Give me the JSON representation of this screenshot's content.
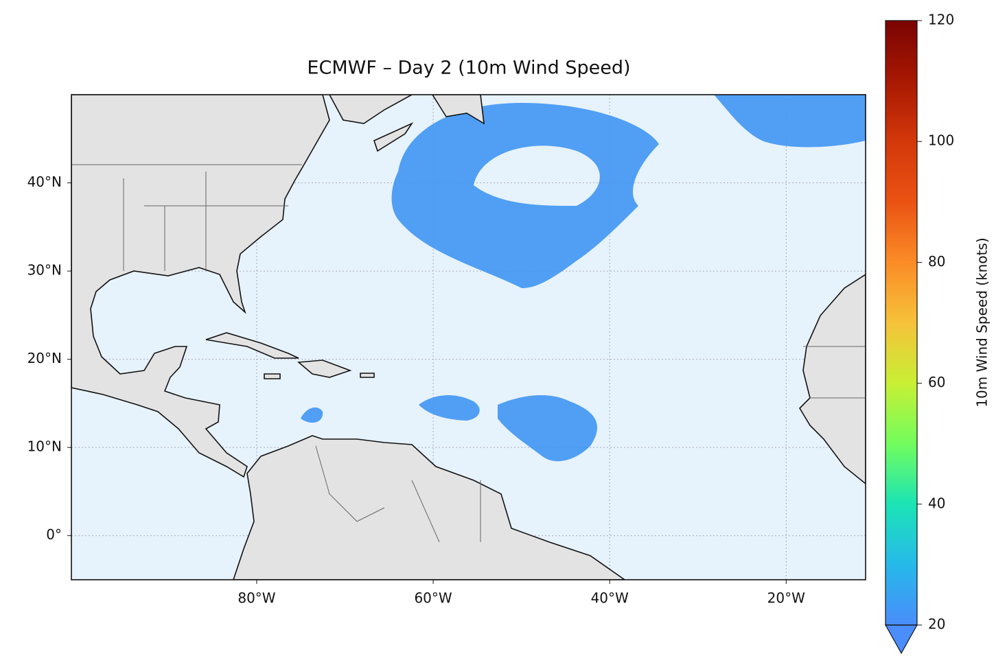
{
  "chart_data": {
    "type": "map",
    "title": "ECMWF – Day 2 (10m Wind Speed)",
    "xlim": [
      -101,
      -11
    ],
    "xticks": [
      {
        "value": -80,
        "label": "80°W"
      },
      {
        "value": -60,
        "label": "60°W"
      },
      {
        "value": -40,
        "label": "40°W"
      },
      {
        "value": -20,
        "label": "20°W"
      }
    ],
    "ylim": [
      -5,
      50
    ],
    "yticks": [
      {
        "value": 0,
        "label": "0°"
      },
      {
        "value": 10,
        "label": "10°N"
      },
      {
        "value": 20,
        "label": "20°N"
      },
      {
        "value": 30,
        "label": "30°N"
      },
      {
        "value": 40,
        "label": "40°N"
      }
    ],
    "grid": true,
    "colorbar": {
      "label": "10m Wind Speed (knots)",
      "lim": [
        20,
        120
      ],
      "ticks": [
        20,
        40,
        60,
        80,
        100,
        120
      ]
    }
  }
}
